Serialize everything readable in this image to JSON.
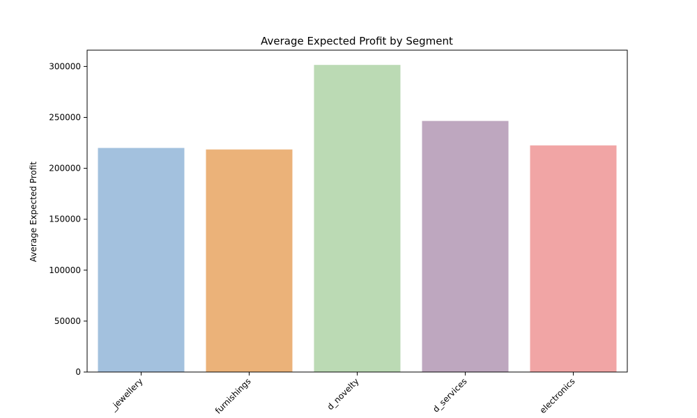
{
  "chart_data": {
    "type": "bar",
    "title": "Average Expected Profit by Segment",
    "xlabel": "",
    "ylabel": "Average Expected Profit",
    "categories": [
      "_jewellery",
      "furnishings",
      "d_novelty",
      "d_services",
      "electronics"
    ],
    "values": [
      220000,
      218500,
      301500,
      246500,
      222500
    ],
    "colors": [
      "#a3c1de",
      "#ebb279",
      "#bbdab4",
      "#bea7bf",
      "#f1a5a5"
    ],
    "ylim": [
      0,
      316000
    ],
    "yticks": [
      0,
      50000,
      100000,
      150000,
      200000,
      250000,
      300000
    ],
    "grid": false,
    "legend": "none"
  }
}
